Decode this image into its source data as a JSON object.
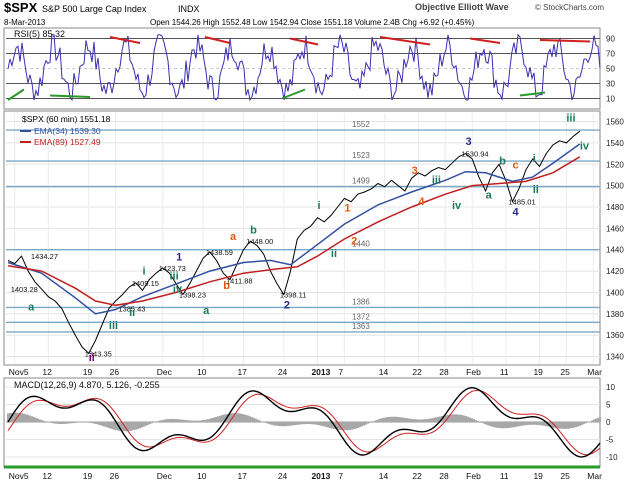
{
  "header": {
    "ticker": "$SPX",
    "name": "S&P 500 Large Cap Index",
    "exchange": "INDX",
    "date": "8-Mar-2013",
    "ohlc": "Open 1544.26  High 1552.48  Low 1542.94  Close 1551.18  Volume 2.4B  Chg +6.92 (+0.45%)",
    "brand": "Objective Elliott Wave",
    "copyright": "© StockCharts.com"
  },
  "rsi_panel": {
    "label": "RSI(5) 85.32",
    "ticks": [
      "90",
      "70",
      "50",
      "30",
      "10"
    ]
  },
  "price_panel": {
    "legend_main": "$SPX (60 min) 1551.18",
    "legend_ema34": "EMA(34) 1539.30",
    "legend_ema89": "EMA(89) 1527.49",
    "y_ticks": [
      1340,
      1360,
      1380,
      1400,
      1420,
      1440,
      1460,
      1480,
      1500,
      1520,
      1540,
      1560
    ],
    "x_labels": [
      "Nov5",
      "12",
      "19",
      "26",
      "Dec",
      "10",
      "17",
      "24",
      "2013",
      "7",
      "14",
      "22",
      "28",
      "Feb",
      "11",
      "19",
      "25",
      "Mar"
    ]
  },
  "macd_panel": {
    "label": "MACD(12,26,9) 4.870, 5.126, -0.255",
    "ticks": [
      "10",
      "5",
      "0",
      "-5",
      "-10"
    ]
  },
  "chart_data": {
    "type": "line",
    "series": [
      {
        "name": "$SPX (60 min)",
        "points": [
          [
            0,
            1430
          ],
          [
            2,
            1427
          ],
          [
            4,
            1434
          ],
          [
            6,
            1420
          ],
          [
            8,
            1410
          ],
          [
            10,
            1403
          ],
          [
            12,
            1396
          ],
          [
            14,
            1392
          ],
          [
            16,
            1385
          ],
          [
            18,
            1372
          ],
          [
            20,
            1360
          ],
          [
            22,
            1349
          ],
          [
            24,
            1343
          ],
          [
            26,
            1355
          ],
          [
            28,
            1370
          ],
          [
            30,
            1385
          ],
          [
            32,
            1392
          ],
          [
            34,
            1398
          ],
          [
            36,
            1405
          ],
          [
            38,
            1409
          ],
          [
            40,
            1402
          ],
          [
            42,
            1412
          ],
          [
            44,
            1418
          ],
          [
            46,
            1423
          ],
          [
            48,
            1418
          ],
          [
            50,
            1408
          ],
          [
            52,
            1398
          ],
          [
            54,
            1408
          ],
          [
            56,
            1420
          ],
          [
            58,
            1432
          ],
          [
            60,
            1438
          ],
          [
            62,
            1430
          ],
          [
            64,
            1418
          ],
          [
            66,
            1412
          ],
          [
            68,
            1426
          ],
          [
            70,
            1440
          ],
          [
            72,
            1448
          ],
          [
            74,
            1444
          ],
          [
            76,
            1436
          ],
          [
            78,
            1420
          ],
          [
            80,
            1408
          ],
          [
            82,
            1398
          ],
          [
            84,
            1420
          ],
          [
            86,
            1450
          ],
          [
            88,
            1458
          ],
          [
            90,
            1462
          ],
          [
            92,
            1470
          ],
          [
            94,
            1466
          ],
          [
            96,
            1472
          ],
          [
            98,
            1480
          ],
          [
            100,
            1488
          ],
          [
            102,
            1485
          ],
          [
            104,
            1492
          ],
          [
            106,
            1494
          ],
          [
            108,
            1497
          ],
          [
            110,
            1502
          ],
          [
            112,
            1499
          ],
          [
            114,
            1505
          ],
          [
            116,
            1500
          ],
          [
            118,
            1495
          ],
          [
            120,
            1507
          ],
          [
            122,
            1512
          ],
          [
            124,
            1509
          ],
          [
            126,
            1514
          ],
          [
            128,
            1517
          ],
          [
            130,
            1515
          ],
          [
            132,
            1521
          ],
          [
            134,
            1527
          ],
          [
            136,
            1530
          ],
          [
            138,
            1525
          ],
          [
            140,
            1508
          ],
          [
            142,
            1495
          ],
          [
            144,
            1512
          ],
          [
            146,
            1520
          ],
          [
            148,
            1505
          ],
          [
            150,
            1485
          ],
          [
            152,
            1498
          ],
          [
            154,
            1515
          ],
          [
            156,
            1525
          ],
          [
            158,
            1518
          ],
          [
            160,
            1530
          ],
          [
            162,
            1538
          ],
          [
            164,
            1542
          ],
          [
            166,
            1540
          ],
          [
            168,
            1546
          ],
          [
            170,
            1551
          ]
        ]
      },
      {
        "name": "EMA(34)",
        "points": [
          [
            0,
            1428
          ],
          [
            10,
            1418
          ],
          [
            20,
            1395
          ],
          [
            26,
            1380
          ],
          [
            32,
            1384
          ],
          [
            40,
            1396
          ],
          [
            50,
            1408
          ],
          [
            60,
            1420
          ],
          [
            70,
            1428
          ],
          [
            78,
            1430
          ],
          [
            84,
            1426
          ],
          [
            90,
            1440
          ],
          [
            100,
            1464
          ],
          [
            110,
            1482
          ],
          [
            120,
            1494
          ],
          [
            130,
            1505
          ],
          [
            136,
            1513
          ],
          [
            142,
            1512
          ],
          [
            150,
            1504
          ],
          [
            156,
            1508
          ],
          [
            162,
            1521
          ],
          [
            170,
            1539
          ]
        ]
      },
      {
        "name": "EMA(89)",
        "points": [
          [
            0,
            1425
          ],
          [
            10,
            1420
          ],
          [
            20,
            1404
          ],
          [
            26,
            1392
          ],
          [
            32,
            1388
          ],
          [
            40,
            1392
          ],
          [
            50,
            1400
          ],
          [
            60,
            1410
          ],
          [
            70,
            1418
          ],
          [
            80,
            1422
          ],
          [
            86,
            1424
          ],
          [
            92,
            1434
          ],
          [
            100,
            1450
          ],
          [
            110,
            1466
          ],
          [
            120,
            1480
          ],
          [
            130,
            1492
          ],
          [
            138,
            1500
          ],
          [
            146,
            1502
          ],
          [
            154,
            1504
          ],
          [
            162,
            1512
          ],
          [
            170,
            1527
          ]
        ]
      }
    ],
    "horizontal_levels": [
      1552,
      1523,
      1499,
      1440,
      1386,
      1372,
      1363
    ],
    "price_labels": [
      {
        "text": "1434.27",
        "x": 8,
        "y": 1434
      },
      {
        "text": "1403.28",
        "x": 2,
        "y": 1403
      },
      {
        "text": "1343.35",
        "x": 24,
        "y": 1343
      },
      {
        "text": "1409.15",
        "x": 38,
        "y": 1409
      },
      {
        "text": "1423.73",
        "x": 46,
        "y": 1423
      },
      {
        "text": "1385.43",
        "x": 34,
        "y": 1385
      },
      {
        "text": "1398.23",
        "x": 52,
        "y": 1398
      },
      {
        "text": "1438.59",
        "x": 60,
        "y": 1438
      },
      {
        "text": "1448.00",
        "x": 72,
        "y": 1448
      },
      {
        "text": "1411.88",
        "x": 66,
        "y": 1411
      },
      {
        "text": "1398.11",
        "x": 82,
        "y": 1398
      },
      {
        "text": "1530.94",
        "x": 136,
        "y": 1530
      },
      {
        "text": "1485.01",
        "x": 150,
        "y": 1485
      }
    ],
    "wave_labels": [
      {
        "text": "a",
        "x": 6,
        "y": 1383,
        "color": "#1a7a5e"
      },
      {
        "text": "ii",
        "x": 24,
        "y": 1336,
        "color": "#800080"
      },
      {
        "text": "iii",
        "x": 30,
        "y": 1366,
        "color": "#1a7a5e"
      },
      {
        "text": "i",
        "x": 40,
        "y": 1417,
        "color": "#1a7a5e"
      },
      {
        "text": "iii",
        "x": 48,
        "y": 1412,
        "color": "#1a7a5e"
      },
      {
        "text": "iv",
        "x": 49,
        "y": 1400,
        "color": "#1a7a5e"
      },
      {
        "text": "1",
        "x": 50,
        "y": 1430,
        "color": "#2a2a8a"
      },
      {
        "text": "ii",
        "x": 36,
        "y": 1378,
        "color": "#1a7a5e"
      },
      {
        "text": "a",
        "x": 58,
        "y": 1380,
        "color": "#1a7a5e"
      },
      {
        "text": "a",
        "x": 66,
        "y": 1449,
        "color": "#e05a10"
      },
      {
        "text": "b",
        "x": 72,
        "y": 1455,
        "color": "#1a7a5e"
      },
      {
        "text": "b",
        "x": 64,
        "y": 1403,
        "color": "#e05a10"
      },
      {
        "text": "2",
        "x": 82,
        "y": 1385,
        "color": "#2a2a8a"
      },
      {
        "text": "i",
        "x": 92,
        "y": 1478,
        "color": "#1a7a5e"
      },
      {
        "text": "1",
        "x": 100,
        "y": 1476,
        "color": "#e05a10"
      },
      {
        "text": "ii",
        "x": 96,
        "y": 1433,
        "color": "#1a7a5e"
      },
      {
        "text": "2",
        "x": 102,
        "y": 1445,
        "color": "#e05a10"
      },
      {
        "text": "3",
        "x": 120,
        "y": 1511,
        "color": "#e05a10"
      },
      {
        "text": "iii",
        "x": 126,
        "y": 1502,
        "color": "#1a7a5e"
      },
      {
        "text": "4",
        "x": 122,
        "y": 1482,
        "color": "#e05a10"
      },
      {
        "text": "iv",
        "x": 132,
        "y": 1478,
        "color": "#1a7a5e"
      },
      {
        "text": "3",
        "x": 136,
        "y": 1538,
        "color": "#2a2a8a"
      },
      {
        "text": "b",
        "x": 146,
        "y": 1520,
        "color": "#1a7a5e"
      },
      {
        "text": "c",
        "x": 150,
        "y": 1516,
        "color": "#e05a10"
      },
      {
        "text": "a",
        "x": 142,
        "y": 1488,
        "color": "#1a7a5e"
      },
      {
        "text": "i",
        "x": 156,
        "y": 1522,
        "color": "#1a7a5e"
      },
      {
        "text": "ii",
        "x": 156,
        "y": 1493,
        "color": "#1a7a5e"
      },
      {
        "text": "4",
        "x": 150,
        "y": 1472,
        "color": "#2a2a8a"
      },
      {
        "text": "iii",
        "x": 166,
        "y": 1560,
        "color": "#1a7a5e"
      },
      {
        "text": "iv",
        "x": 170,
        "y": 1534,
        "color": "#1a7a5e"
      }
    ],
    "x_label_positions": [
      2,
      12,
      24,
      32,
      46,
      58,
      70,
      82,
      92,
      100,
      112,
      122,
      130,
      138,
      148,
      158,
      166,
      174
    ],
    "xlim": [
      0,
      176
    ],
    "ylim": [
      1333,
      1568
    ],
    "rsi": {
      "ylim": [
        0,
        100
      ],
      "levels": [
        90,
        70,
        50,
        30,
        10
      ],
      "last": 85.32
    },
    "macd": {
      "ylim": [
        -12,
        12
      ],
      "values": [
        4.87,
        5.126,
        -0.255
      ]
    }
  }
}
